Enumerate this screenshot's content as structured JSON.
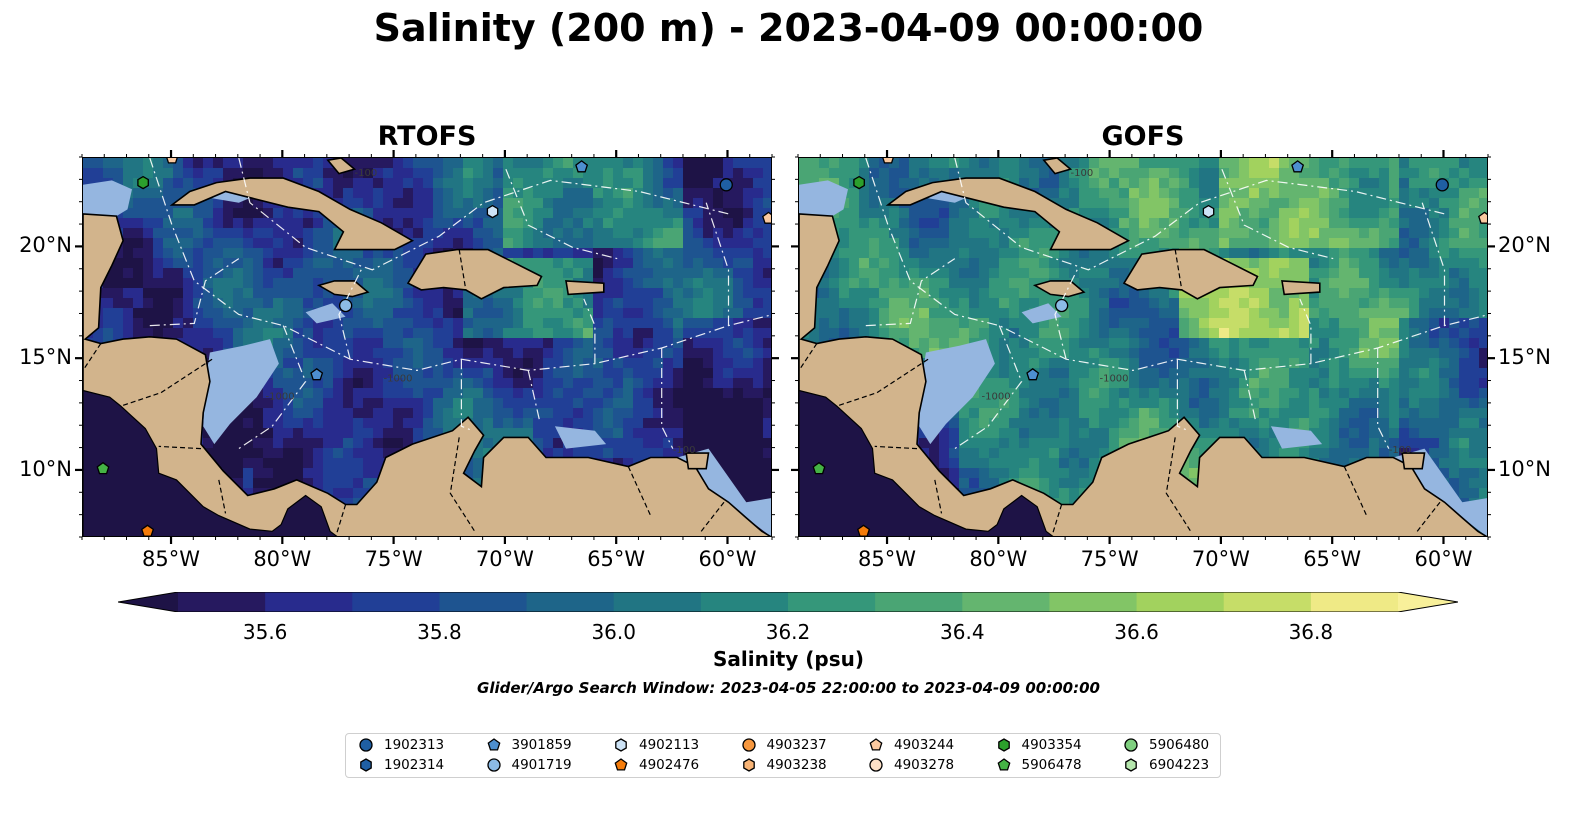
{
  "title": "Salinity (200 m) - 2023-04-09 00:00:00",
  "panels": [
    {
      "title": "RTOFS",
      "palette_shift": 0
    },
    {
      "title": "GOFS",
      "palette_shift": 4
    }
  ],
  "map": {
    "lon_range": [
      -89,
      -58
    ],
    "lat_range": [
      7,
      24
    ],
    "lon_ticks": [
      "85°W",
      "80°W",
      "75°W",
      "70°W",
      "65°W",
      "60°W"
    ],
    "lon_tick_values": [
      -85,
      -80,
      -75,
      -70,
      -65,
      -60
    ],
    "lat_ticks": [
      "20°N",
      "15°N",
      "10°N"
    ],
    "lat_tick_values": [
      20,
      15,
      10
    ],
    "bathymetry_contour_labels": [
      "-1000",
      "-100",
      "-1000",
      "-100"
    ],
    "land_color": "#d2b48c",
    "shelf_color": "#95b6e0",
    "coast_color": "#000000"
  },
  "colorbar": {
    "label": "Salinity (psu)",
    "vmin": 35.5,
    "vmax": 36.9,
    "step": 0.1,
    "ticks": [
      "35.6",
      "35.8",
      "36.0",
      "36.2",
      "36.4",
      "36.6",
      "36.8"
    ],
    "tick_values": [
      35.6,
      35.8,
      36.0,
      36.2,
      36.4,
      36.6,
      36.8
    ],
    "colors": [
      "#26195f",
      "#282b8d",
      "#213f96",
      "#1e5490",
      "#1e6589",
      "#217583",
      "#26857f",
      "#35977a",
      "#4aa574",
      "#64b56f",
      "#82c566",
      "#a2d25e",
      "#c6dd68",
      "#efea86"
    ],
    "under_color": "#1e1346",
    "over_color": "#f8f09a"
  },
  "search_window": "Glider/Argo Search Window: 2023-04-05 22:00:00 to 2023-04-09 00:00:00",
  "legend": {
    "items": [
      {
        "label": "1902313",
        "marker": "circle",
        "color": "#1f5fa3"
      },
      {
        "label": "1902314",
        "marker": "hexagon",
        "color": "#1f5fa3"
      },
      {
        "label": "3901859",
        "marker": "pentagon",
        "color": "#4d8fcf"
      },
      {
        "label": "4901719",
        "marker": "circle",
        "color": "#8cbbe6"
      },
      {
        "label": "4902113",
        "marker": "hexagon",
        "color": "#cde3f6"
      },
      {
        "label": "4902476",
        "marker": "pentagon",
        "color": "#f57c0a"
      },
      {
        "label": "4903237",
        "marker": "circle",
        "color": "#f7983f"
      },
      {
        "label": "4903238",
        "marker": "hexagon",
        "color": "#f8b476"
      },
      {
        "label": "4903244",
        "marker": "pentagon",
        "color": "#fac9a0"
      },
      {
        "label": "4903278",
        "marker": "circle",
        "color": "#fde0c6"
      },
      {
        "label": "4903354",
        "marker": "hexagon",
        "color": "#2ca02c"
      },
      {
        "label": "5906478",
        "marker": "pentagon",
        "color": "#45b345"
      },
      {
        "label": "5906480",
        "marker": "circle",
        "color": "#7fcf7f"
      },
      {
        "label": "6904223",
        "marker": "hexagon",
        "color": "#b5e6ad"
      }
    ]
  },
  "platforms": [
    {
      "id": "1902313",
      "lon": -60.1,
      "lat": 22.8
    },
    {
      "id": "3901859",
      "lon": -66.6,
      "lat": 23.6
    },
    {
      "id": "4902113",
      "lon": -70.6,
      "lat": 21.6
    },
    {
      "id": "4901719",
      "lon": -77.2,
      "lat": 17.4
    },
    {
      "id": "3901859",
      "lon": -78.5,
      "lat": 14.3
    },
    {
      "id": "4903354",
      "lon": -86.3,
      "lat": 22.9
    },
    {
      "id": "5906478",
      "lon": -88.1,
      "lat": 10.1
    },
    {
      "id": "4902476",
      "lon": -86.1,
      "lat": 7.3
    },
    {
      "id": "4903244",
      "lon": -58.2,
      "lat": 21.3
    },
    {
      "id": "4903244",
      "lon": -85.0,
      "lat": 24.0
    }
  ]
}
